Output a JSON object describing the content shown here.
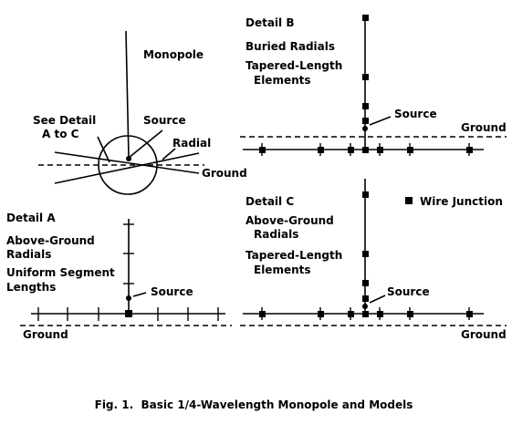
{
  "main": {
    "monopole_label": "Monopole",
    "see_detail_line1": "See Detail",
    "see_detail_line2": "A to C",
    "source_label": "Source",
    "radial_label": "Radial",
    "ground_label": "Ground"
  },
  "detail_a": {
    "title": "Detail A",
    "line1": "Above-Ground",
    "line2": "Radials",
    "line3": "Uniform Segment",
    "line4": "Lengths",
    "source_label": "Source",
    "ground_label": "Ground"
  },
  "detail_b": {
    "title": "Detail B",
    "line1": "Buried Radials",
    "line2": "Tapered-Length",
    "line3": "Elements",
    "source_label": "Source",
    "ground_label": "Ground"
  },
  "detail_c": {
    "title": "Detail C",
    "line1": "Above-Ground",
    "line2": "Radials",
    "line3": "Tapered-Length",
    "line4": "Elements",
    "source_label": "Source",
    "ground_label": "Ground",
    "legend_label": "Wire Junction"
  },
  "caption": "Fig. 1.  Basic 1/4-Wavelength Monopole and Models"
}
